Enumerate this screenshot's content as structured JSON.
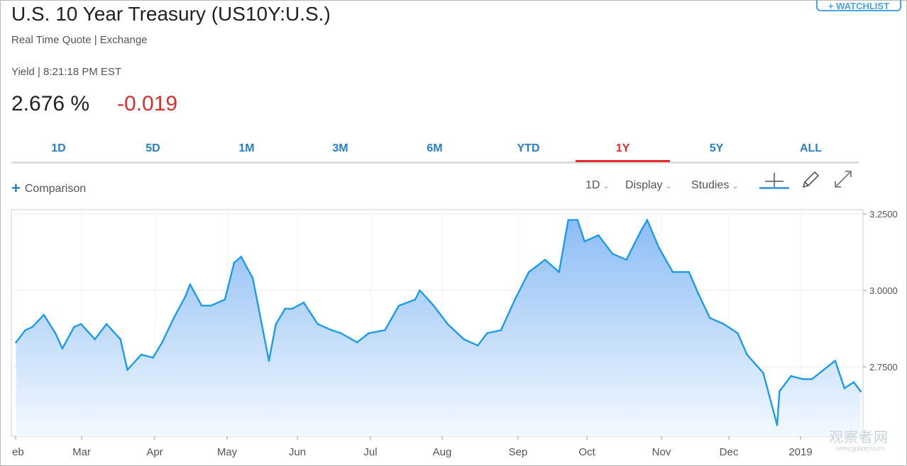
{
  "header": {
    "title": "U.S. 10 Year Treasury (US10Y:U.S.)",
    "watchlist_label": "+ WATCHLIST",
    "subtitle": "Real Time Quote | Exchange",
    "yield_line": "Yield | 8:21:18 PM EST",
    "price": "2.676",
    "price_unit": "%",
    "change": "-0.019",
    "change_color": "#d3312e"
  },
  "tabs": [
    {
      "label": "1D",
      "active": false
    },
    {
      "label": "5D",
      "active": false
    },
    {
      "label": "1M",
      "active": false
    },
    {
      "label": "3M",
      "active": false
    },
    {
      "label": "6M",
      "active": false
    },
    {
      "label": "YTD",
      "active": false
    },
    {
      "label": "1Y",
      "active": true
    },
    {
      "label": "5Y",
      "active": false
    },
    {
      "label": "ALL",
      "active": false
    }
  ],
  "toolbar": {
    "comparison_label": "Comparison",
    "interval_label": "1D",
    "display_label": "Display",
    "studies_label": "Studies",
    "tools": [
      "crosshair-icon",
      "pencil-icon",
      "expand-icon"
    ]
  },
  "watermark": {
    "text": "观察者网",
    "url": "www.guancha.cn"
  },
  "colors": {
    "accent": "#2a7fbf",
    "line": "#1e9be8",
    "active_tab": "#e02b2b"
  },
  "chart_data": {
    "type": "area",
    "title": "",
    "xlabel": "",
    "ylabel": "",
    "ylim": [
      2.5,
      3.25
    ],
    "y_ticks": [
      "3.2500",
      "3.0000",
      "2.7500"
    ],
    "x_month_labels": [
      "eb",
      "Mar",
      "Apr",
      "May",
      "Jun",
      "Jul",
      "Aug",
      "Sep",
      "Oct",
      "Nov",
      "Dec",
      "2019"
    ],
    "grid": true,
    "series": [
      {
        "x": [
          "2018-02-09",
          "2018-02-13",
          "2018-02-16",
          "2018-02-21",
          "2018-02-26",
          "2018-03-01",
          "2018-03-06",
          "2018-03-09",
          "2018-03-15",
          "2018-03-20",
          "2018-03-26",
          "2018-03-29",
          "2018-04-04",
          "2018-04-09",
          "2018-04-13",
          "2018-04-18",
          "2018-04-23",
          "2018-04-25",
          "2018-04-30",
          "2018-05-04",
          "2018-05-10",
          "2018-05-14",
          "2018-05-17",
          "2018-05-22",
          "2018-05-29",
          "2018-06-01",
          "2018-06-05",
          "2018-06-08",
          "2018-06-13",
          "2018-06-19",
          "2018-06-25",
          "2018-06-29",
          "2018-07-06",
          "2018-07-11",
          "2018-07-18",
          "2018-07-24",
          "2018-07-31",
          "2018-08-02",
          "2018-08-08",
          "2018-08-14",
          "2018-08-21",
          "2018-08-27",
          "2018-08-31",
          "2018-09-06",
          "2018-09-12",
          "2018-09-18",
          "2018-09-25",
          "2018-10-01",
          "2018-10-05",
          "2018-10-09",
          "2018-10-12",
          "2018-10-18",
          "2018-10-24",
          "2018-10-30",
          "2018-11-05",
          "2018-11-08",
          "2018-11-13",
          "2018-11-19",
          "2018-11-26",
          "2018-11-30",
          "2018-12-05",
          "2018-12-11",
          "2018-12-17",
          "2018-12-21",
          "2018-12-28",
          "2019-01-03",
          "2019-01-04",
          "2019-01-09",
          "2019-01-14",
          "2019-01-18",
          "2019-01-23",
          "2019-01-28",
          "2019-02-01",
          "2019-02-05",
          "2019-02-08"
        ],
        "values": [
          2.83,
          2.87,
          2.88,
          2.92,
          2.86,
          2.81,
          2.88,
          2.89,
          2.84,
          2.89,
          2.84,
          2.74,
          2.79,
          2.78,
          2.83,
          2.91,
          2.98,
          3.02,
          2.95,
          2.95,
          2.97,
          3.09,
          3.11,
          3.04,
          2.77,
          2.89,
          2.94,
          2.94,
          2.96,
          2.89,
          2.87,
          2.86,
          2.83,
          2.86,
          2.87,
          2.95,
          2.97,
          3.0,
          2.95,
          2.89,
          2.84,
          2.82,
          2.86,
          2.87,
          2.97,
          3.06,
          3.1,
          3.06,
          3.23,
          3.23,
          3.16,
          3.18,
          3.12,
          3.1,
          3.19,
          3.23,
          3.14,
          3.06,
          3.06,
          2.99,
          2.91,
          2.89,
          2.86,
          2.79,
          2.73,
          2.56,
          2.67,
          2.72,
          2.71,
          2.71,
          2.74,
          2.77,
          2.68,
          2.7,
          2.67
        ]
      }
    ]
  }
}
